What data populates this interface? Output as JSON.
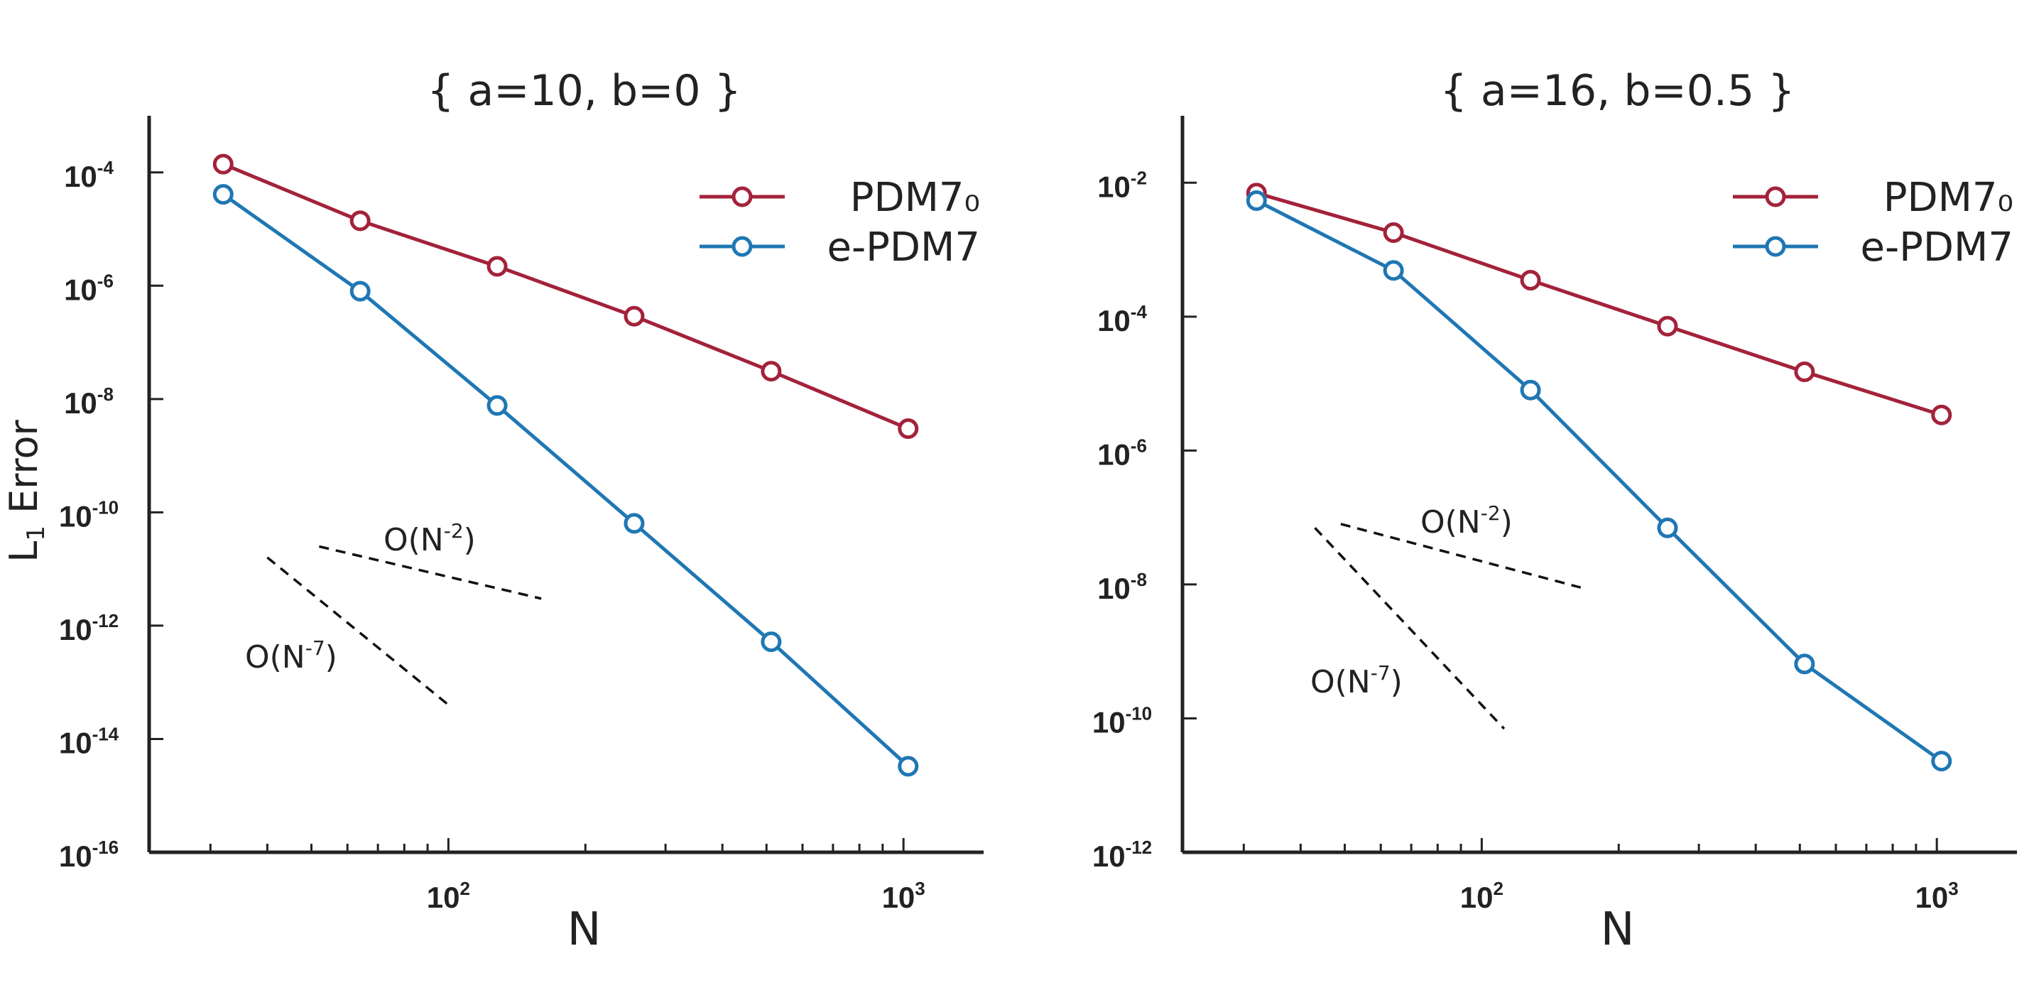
{
  "chart_data": [
    {
      "type": "line",
      "title": "{ a=10, b=0 }",
      "xlabel": "N",
      "ylabel": "L1 Error",
      "ylabel_base": "L",
      "ylabel_sub": "1",
      "ylabel_rest": "Error",
      "xscale": "log",
      "yscale": "log",
      "xlim": [
        22,
        1500
      ],
      "ylim": [
        1e-16,
        0.001
      ],
      "x_ticks": [
        {
          "base": "10",
          "exp": "2",
          "value": 100
        },
        {
          "base": "10",
          "exp": "3",
          "value": 1000
        }
      ],
      "y_ticks": [
        {
          "base": "10",
          "exp": "-4",
          "value": 0.0001
        },
        {
          "base": "10",
          "exp": "-6",
          "value": 1e-06
        },
        {
          "base": "10",
          "exp": "-8",
          "value": 1e-08
        },
        {
          "base": "10",
          "exp": "-10",
          "value": 1e-10
        },
        {
          "base": "10",
          "exp": "-12",
          "value": 1e-12
        },
        {
          "base": "10",
          "exp": "-14",
          "value": 1e-14
        },
        {
          "base": "10",
          "exp": "-16",
          "value": 1e-16
        }
      ],
      "grid": false,
      "legend_position": "top-right",
      "x": [
        32,
        64,
        128,
        256,
        512,
        1024
      ],
      "series": [
        {
          "name": "PDM7₀",
          "color": "#a3223a",
          "values": [
            0.00014,
            1.4e-05,
            2.2e-06,
            2.9e-07,
            3.1e-08,
            3e-09
          ]
        },
        {
          "name": "e-PDM7",
          "color": "#1f77b4",
          "values": [
            4.1e-05,
            8e-07,
            7.7e-09,
            6.4e-11,
            5.2e-13,
            3.3e-15
          ]
        }
      ],
      "reference_lines": [
        {
          "label_base": "O(N",
          "label_exp": "-2",
          "label_close": ")",
          "x": [
            52,
            160
          ],
          "y": [
            2.5e-11,
            3e-12
          ]
        },
        {
          "label_base": "O(N",
          "label_exp": "-7",
          "label_close": ")",
          "x": [
            40,
            100
          ],
          "y": [
            1.6e-11,
            4e-14
          ]
        }
      ]
    },
    {
      "type": "line",
      "title": "{ a=16, b=0.5 }",
      "xlabel": "N",
      "ylabel": "",
      "xscale": "log",
      "yscale": "log",
      "xlim": [
        22,
        1500
      ],
      "ylim": [
        1e-12,
        0.1
      ],
      "x_ticks": [
        {
          "base": "10",
          "exp": "2",
          "value": 100
        },
        {
          "base": "10",
          "exp": "3",
          "value": 1000
        }
      ],
      "y_ticks": [
        {
          "base": "10",
          "exp": "-2",
          "value": 0.01
        },
        {
          "base": "10",
          "exp": "-4",
          "value": 0.0001
        },
        {
          "base": "10",
          "exp": "-6",
          "value": 1e-06
        },
        {
          "base": "10",
          "exp": "-8",
          "value": 1e-08
        },
        {
          "base": "10",
          "exp": "-10",
          "value": 1e-10
        },
        {
          "base": "10",
          "exp": "-12",
          "value": 1e-12
        }
      ],
      "grid": false,
      "legend_position": "top-right",
      "x": [
        32,
        64,
        128,
        256,
        512,
        1024
      ],
      "series": [
        {
          "name": "PDM7₀",
          "color": "#a3223a",
          "values": [
            0.007,
            0.0018,
            0.00035,
            7.2e-05,
            1.5e-05,
            3.4e-06
          ]
        },
        {
          "name": "e-PDM7",
          "color": "#1f77b4",
          "values": [
            0.0054,
            0.00049,
            8e-06,
            7e-08,
            6.5e-10,
            2.3e-11
          ]
        }
      ],
      "reference_lines": [
        {
          "label_base": "O(N",
          "label_exp": "-2",
          "label_close": ")",
          "x": [
            49,
            165
          ],
          "y": [
            8e-08,
            9e-09
          ]
        },
        {
          "label_base": "O(N",
          "label_exp": "-7",
          "label_close": ")",
          "x": [
            43,
            112
          ],
          "y": [
            7e-08,
            7e-11
          ]
        }
      ]
    }
  ]
}
